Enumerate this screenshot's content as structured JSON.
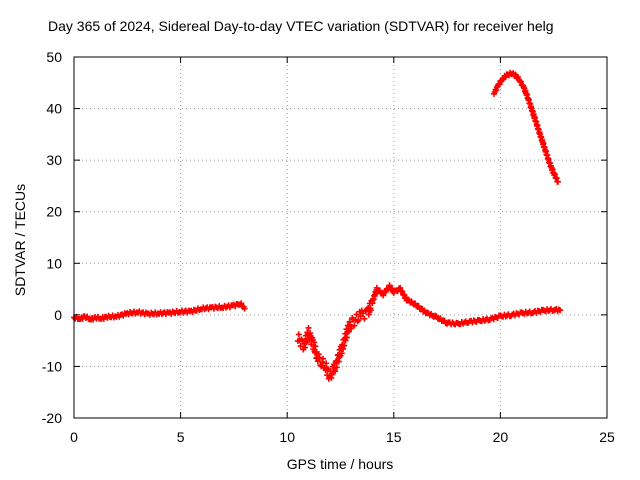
{
  "chart_data": {
    "type": "scatter",
    "title": "Day 365 of 2024, Sidereal Day-to-day VTEC variation (SDTVAR) for receiver helg",
    "xlabel": "GPS time / hours",
    "ylabel": "SDTVAR / TECUs",
    "xlim": [
      0,
      25
    ],
    "ylim": [
      -20,
      50
    ],
    "xticks": [
      "0",
      "5",
      "10",
      "15",
      "20",
      "25"
    ],
    "yticks": [
      "-20",
      "-10",
      "0",
      "10",
      "20",
      "30",
      "40",
      "50"
    ],
    "grid": true,
    "marker": "plus",
    "color": "#ff0000",
    "series": [
      {
        "name": "SDTVAR",
        "x": [
          0.0,
          0.3,
          0.5,
          0.8,
          1.0,
          1.3,
          1.5,
          2.0,
          2.5,
          3.0,
          3.5,
          4.0,
          4.5,
          5.0,
          5.5,
          6.0,
          6.5,
          7.0,
          7.5,
          7.8,
          8.0,
          10.5,
          10.8,
          11.0,
          11.2,
          11.4,
          11.6,
          11.8,
          12.0,
          12.2,
          12.4,
          12.6,
          12.8,
          13.0,
          13.2,
          13.5,
          13.8,
          14.0,
          14.2,
          14.5,
          14.8,
          15.0,
          15.3,
          15.6,
          16.0,
          16.5,
          17.0,
          17.5,
          18.0,
          18.5,
          19.0,
          19.5,
          20.0,
          20.5,
          21.0,
          21.5,
          22.0,
          22.5,
          22.8,
          19.7,
          19.9,
          20.1,
          20.3,
          20.5,
          20.7,
          20.9,
          21.1,
          21.3,
          21.5,
          21.7,
          21.9,
          22.1,
          22.3,
          22.5,
          22.7
        ],
        "y": [
          -0.5,
          -0.8,
          -0.3,
          -0.9,
          -0.5,
          -0.7,
          -0.4,
          -0.3,
          0.3,
          0.5,
          0.2,
          0.3,
          0.4,
          0.6,
          0.7,
          1.2,
          1.4,
          1.5,
          1.8,
          2.2,
          1.2,
          -4.5,
          -6.0,
          -3.5,
          -5.5,
          -8.0,
          -9.0,
          -10.0,
          -12.0,
          -10.5,
          -8.5,
          -6.0,
          -3.5,
          -1.5,
          -1.0,
          0.0,
          0.5,
          2.5,
          5.0,
          4.0,
          5.5,
          4.5,
          5.0,
          3.0,
          2.0,
          0.5,
          -0.5,
          -1.5,
          -1.8,
          -1.3,
          -1.2,
          -0.8,
          -0.3,
          0.0,
          0.3,
          0.5,
          0.8,
          1.0,
          0.9,
          43.0,
          44.5,
          45.8,
          46.5,
          46.8,
          46.5,
          45.5,
          44.0,
          42.0,
          39.5,
          37.0,
          34.5,
          32.0,
          29.5,
          27.5,
          25.8
        ]
      }
    ]
  }
}
